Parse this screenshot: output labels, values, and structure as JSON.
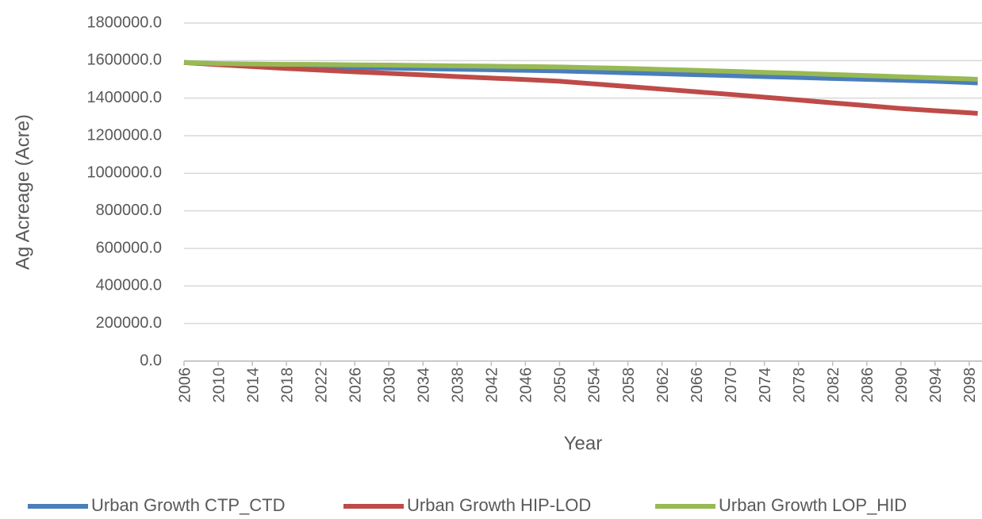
{
  "chart_data": {
    "type": "line",
    "x_label": "Year",
    "y_label": "Ag Acreage  (Acre)",
    "x": [
      2006,
      2010,
      2014,
      2018,
      2022,
      2026,
      2030,
      2034,
      2038,
      2042,
      2046,
      2050,
      2054,
      2058,
      2062,
      2066,
      2070,
      2074,
      2078,
      2082,
      2086,
      2090,
      2094,
      2098,
      2099
    ],
    "xlim": [
      2006,
      2099.5
    ],
    "xticks": [
      2006,
      2010,
      2014,
      2018,
      2022,
      2026,
      2030,
      2034,
      2038,
      2042,
      2046,
      2050,
      2054,
      2058,
      2062,
      2066,
      2070,
      2074,
      2078,
      2082,
      2086,
      2090,
      2094,
      2098
    ],
    "ylim": [
      0,
      1800000
    ],
    "yticks": [
      {
        "value": 0,
        "label": "0.0"
      },
      {
        "value": 200000,
        "label": "200000.0"
      },
      {
        "value": 400000,
        "label": "400000.0"
      },
      {
        "value": 600000,
        "label": "600000.0"
      },
      {
        "value": 800000,
        "label": "800000.0"
      },
      {
        "value": 1000000,
        "label": "1000000.0"
      },
      {
        "value": 1200000,
        "label": "1200000.0"
      },
      {
        "value": 1400000,
        "label": "1400000.0"
      },
      {
        "value": 1600000,
        "label": "1600000.0"
      },
      {
        "value": 1800000,
        "label": "1800000.0"
      }
    ],
    "grid": true,
    "legend": "bottom",
    "series": [
      {
        "name": "Urban Growth CTP_CTD",
        "color": "#4a7ebb",
        "values": [
          1590000,
          1580000,
          1575000,
          1570000,
          1567000,
          1563000,
          1560000,
          1557000,
          1554000,
          1551000,
          1548000,
          1545000,
          1540000,
          1535000,
          1530000,
          1525000,
          1520000,
          1515000,
          1510000,
          1505000,
          1500000,
          1495000,
          1490000,
          1483000,
          1481000
        ]
      },
      {
        "name": "Urban Growth HIP-LOD",
        "color": "#be4b48",
        "values": [
          1590000,
          1578000,
          1568000,
          1558000,
          1549000,
          1540000,
          1532000,
          1524000,
          1515000,
          1507000,
          1499000,
          1490000,
          1476000,
          1462000,
          1448000,
          1434000,
          1420000,
          1405000,
          1390000,
          1375000,
          1360000,
          1345000,
          1333000,
          1322000,
          1319000
        ]
      },
      {
        "name": "Urban Growth LOP_HID",
        "color": "#98b954",
        "values": [
          1590000,
          1584000,
          1582000,
          1580000,
          1579000,
          1577000,
          1576000,
          1574000,
          1572000,
          1570000,
          1568000,
          1566000,
          1562000,
          1558000,
          1553000,
          1548000,
          1543000,
          1537000,
          1532000,
          1526000,
          1520000,
          1514000,
          1508000,
          1502000,
          1500000
        ]
      }
    ]
  }
}
